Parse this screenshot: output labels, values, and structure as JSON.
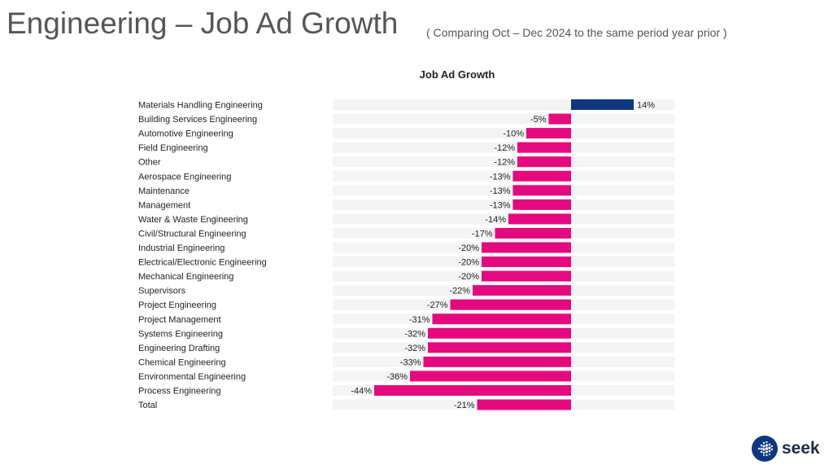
{
  "page": {
    "title": "Engineering – Job Ad Growth",
    "subtitle": "( Comparing Oct – Dec 2024 to the same period year prior )",
    "logo_text": "seek"
  },
  "colors": {
    "positive": "#0d3880",
    "negative": "#e5097f",
    "track": "#f4f4f4"
  },
  "chart_data": {
    "type": "bar",
    "orientation": "horizontal",
    "title": "Job Ad Growth",
    "xlabel": "",
    "ylabel": "",
    "unit": "%",
    "xlim": [
      -50,
      22
    ],
    "grid": false,
    "categories": [
      "Materials Handling Engineering",
      "Building Services Engineering",
      "Automotive Engineering",
      "Field Engineering",
      "Other",
      "Aerospace Engineering",
      "Maintenance",
      "Management",
      "Water & Waste Engineering",
      "Civil/Structural Engineering",
      "Industrial Engineering",
      "Electrical/Electronic Engineering",
      "Mechanical Engineering",
      "Supervisors",
      "Project Engineering",
      "Project Management",
      "Systems Engineering",
      "Engineering Drafting",
      "Chemical Engineering",
      "Environmental Engineering",
      "Process Engineering",
      "Total"
    ],
    "values": [
      14,
      -5,
      -10,
      -12,
      -12,
      -13,
      -13,
      -13,
      -14,
      -17,
      -20,
      -20,
      -20,
      -22,
      -27,
      -31,
      -32,
      -32,
      -33,
      -36,
      -44,
      -21
    ],
    "data_labels": [
      "14%",
      "-5%",
      "-10%",
      "-12%",
      "-12%",
      "-13%",
      "-13%",
      "-13%",
      "-14%",
      "-17%",
      "-20%",
      "-20%",
      "-20%",
      "-22%",
      "-27%",
      "-31%",
      "-32%",
      "-32%",
      "-33%",
      "-36%",
      "-44%",
      "-21%"
    ]
  }
}
